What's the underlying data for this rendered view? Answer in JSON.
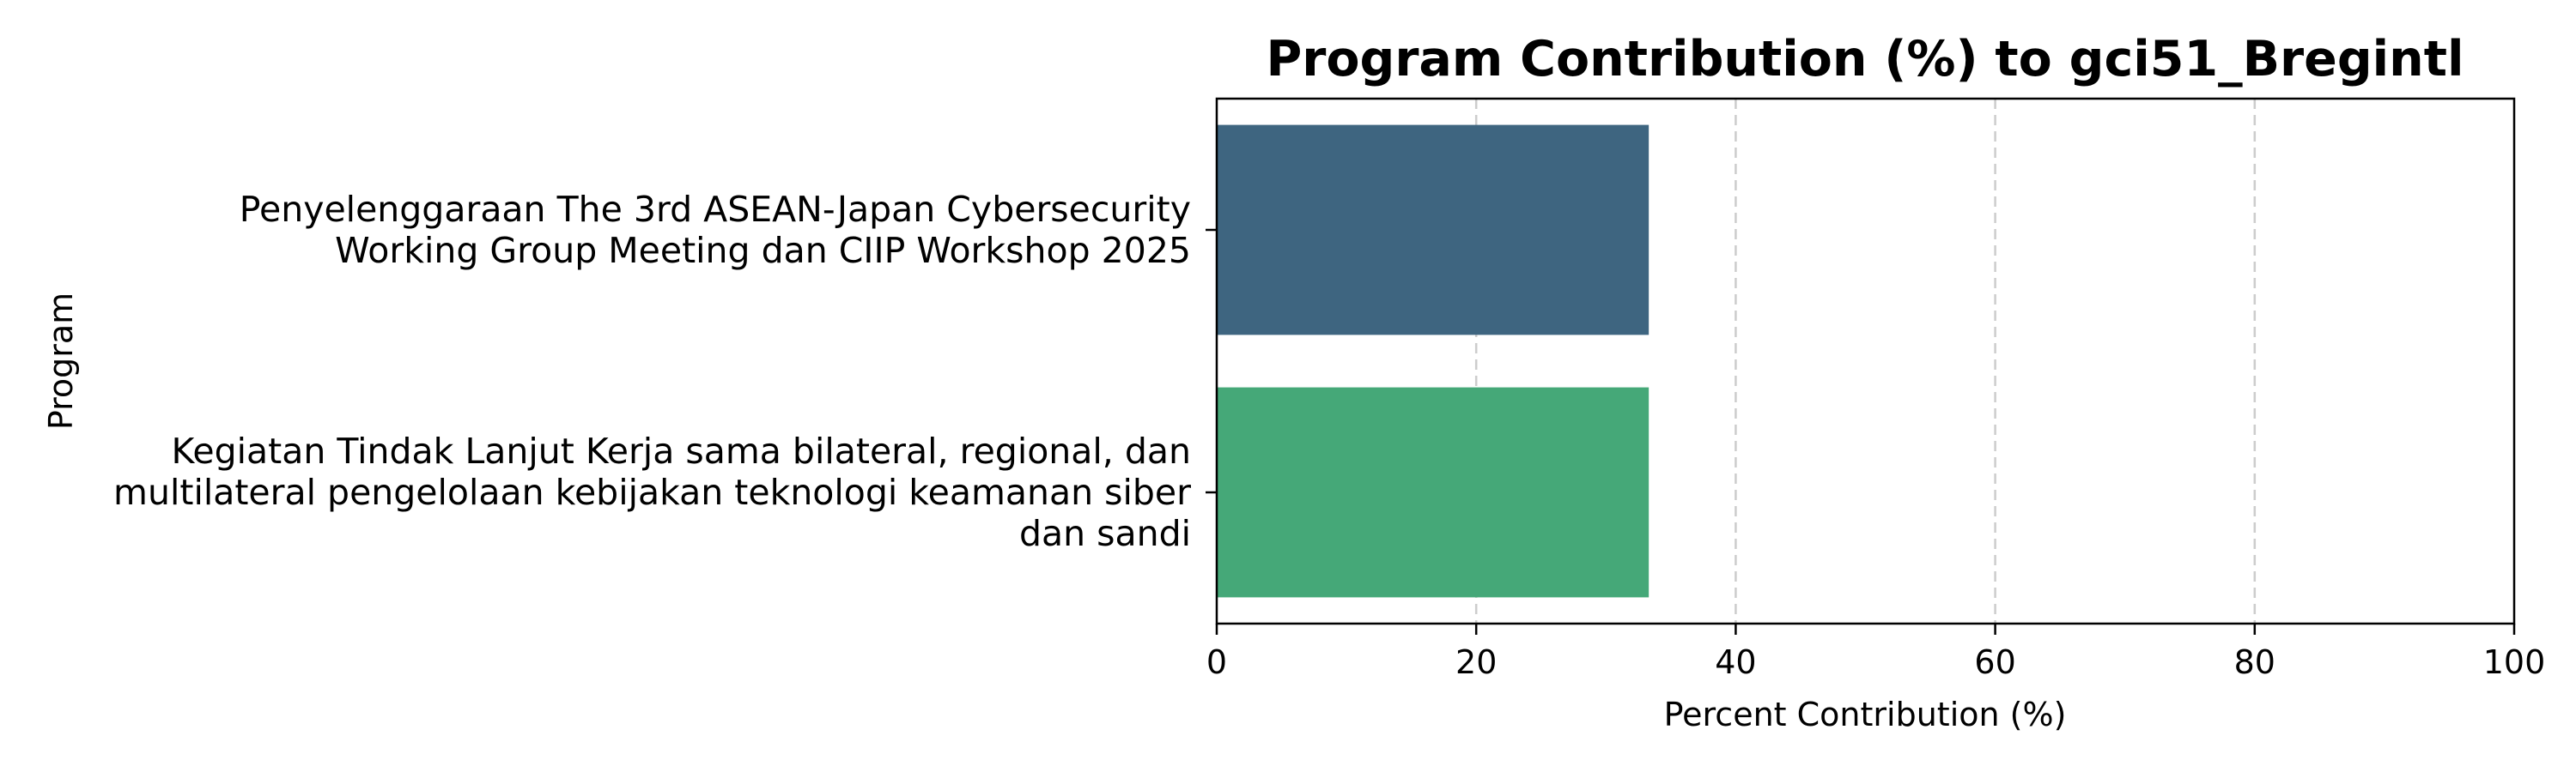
{
  "chart_data": {
    "type": "bar",
    "orientation": "horizontal",
    "title": "Program Contribution (%) to gci51_Bregintl",
    "xlabel": "Percent Contribution (%)",
    "ylabel": "Program",
    "xlim": [
      0,
      100
    ],
    "xticks": [
      0,
      20,
      40,
      60,
      80,
      100
    ],
    "grid": "x-dashed",
    "categories": [
      [
        "Penyelenggaraan The 3rd ASEAN-Japan Cybersecurity",
        "Working Group Meeting dan CIIP Workshop 2025"
      ],
      [
        "Kegiatan Tindak Lanjut Kerja sama bilateral, regional, dan",
        "multilateral pengelolaan kebijakan teknologi keamanan siber",
        "dan sandi"
      ]
    ],
    "values": [
      33.3,
      33.3
    ],
    "colors": [
      "#3e6580",
      "#45a878"
    ]
  }
}
